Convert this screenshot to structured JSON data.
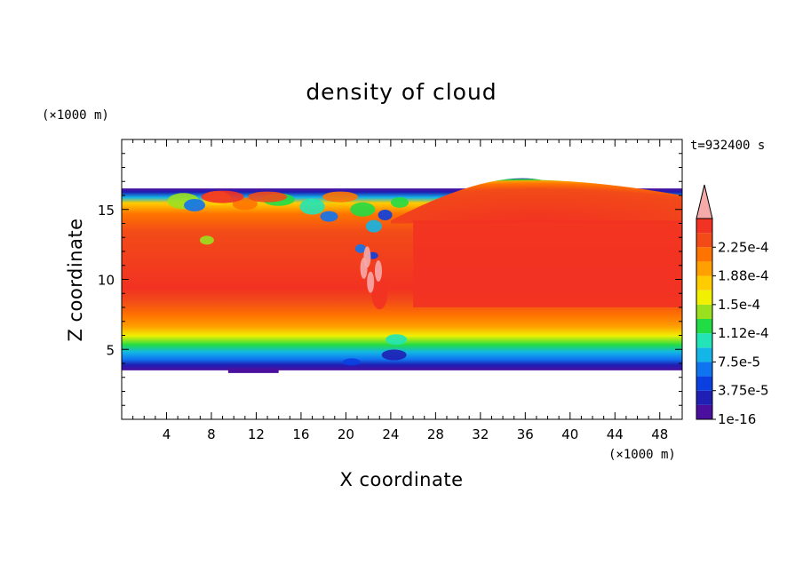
{
  "chart_data": {
    "type": "heatmap",
    "title": "density of cloud",
    "xlabel": "X coordinate",
    "ylabel": "Z coordinate",
    "x_unit": "(×1000 m)",
    "y_unit": "(×1000 m)",
    "time_label": "t=932400 s",
    "xlim": [
      0,
      50
    ],
    "ylim": [
      0,
      20
    ],
    "x_ticks": [
      4,
      8,
      12,
      16,
      20,
      24,
      28,
      32,
      36,
      40,
      44,
      48
    ],
    "y_ticks": [
      5,
      10,
      15
    ],
    "colorbar": {
      "levels": [
        1e-16,
        1.875e-05,
        3.75e-05,
        5.625e-05,
        7.5e-05,
        9.375e-05,
        0.0001125,
        0.00013125,
        0.00015,
        0.00016875,
        0.0001875,
        0.00020625,
        0.000225,
        0.00024375
      ],
      "labels": [
        "1e-16",
        "3.75e-5",
        "7.5e-5",
        "1.12e-4",
        "1.5e-4",
        "1.88e-4",
        "2.25e-4"
      ],
      "colors": [
        "#4b0f9f",
        "#1f1fb4",
        "#0a3fe0",
        "#0f74f0",
        "#13b6e6",
        "#22e4b6",
        "#22dc45",
        "#9be01f",
        "#f0f000",
        "#ffcc00",
        "#ffa000",
        "#ff7400",
        "#f24b18",
        "#f23222"
      ],
      "extend_color": "#f5aaaa"
    },
    "field_description": {
      "cloud_base_z": 3.5,
      "cloud_top_z": 16.5,
      "max_density_band_z": [
        8,
        14
      ],
      "turbulent_region_x": [
        3,
        26
      ],
      "dome_peak": {
        "x": 37.5,
        "z": 17.1
      }
    }
  }
}
